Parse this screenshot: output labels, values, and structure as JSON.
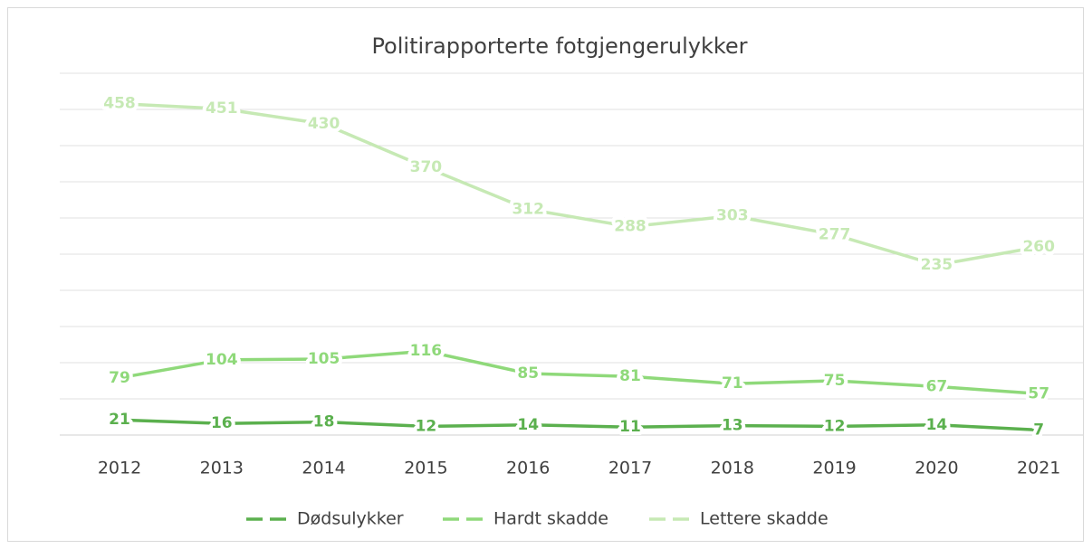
{
  "chart_data": {
    "type": "line",
    "title": "Politirapporterte fotgjengerulykker",
    "categories": [
      "2012",
      "2013",
      "2014",
      "2015",
      "2016",
      "2017",
      "2018",
      "2019",
      "2020",
      "2021"
    ],
    "series": [
      {
        "name": "Dødsulykker",
        "color": "#5bb04e",
        "values": [
          21,
          16,
          18,
          12,
          14,
          11,
          13,
          12,
          14,
          7
        ]
      },
      {
        "name": "Hardt skadde",
        "color": "#8fd97a",
        "values": [
          79,
          104,
          105,
          116,
          85,
          81,
          71,
          75,
          67,
          57
        ]
      },
      {
        "name": "Lettere skadde",
        "color": "#c6e9b4",
        "values": [
          458,
          451,
          430,
          370,
          312,
          288,
          303,
          277,
          235,
          260
        ]
      }
    ],
    "ylim": [
      0,
      500
    ],
    "yticks": [
      0,
      50,
      100,
      150,
      200,
      250,
      300,
      350,
      400,
      450,
      500
    ],
    "grid": true,
    "legend": "bottom"
  }
}
